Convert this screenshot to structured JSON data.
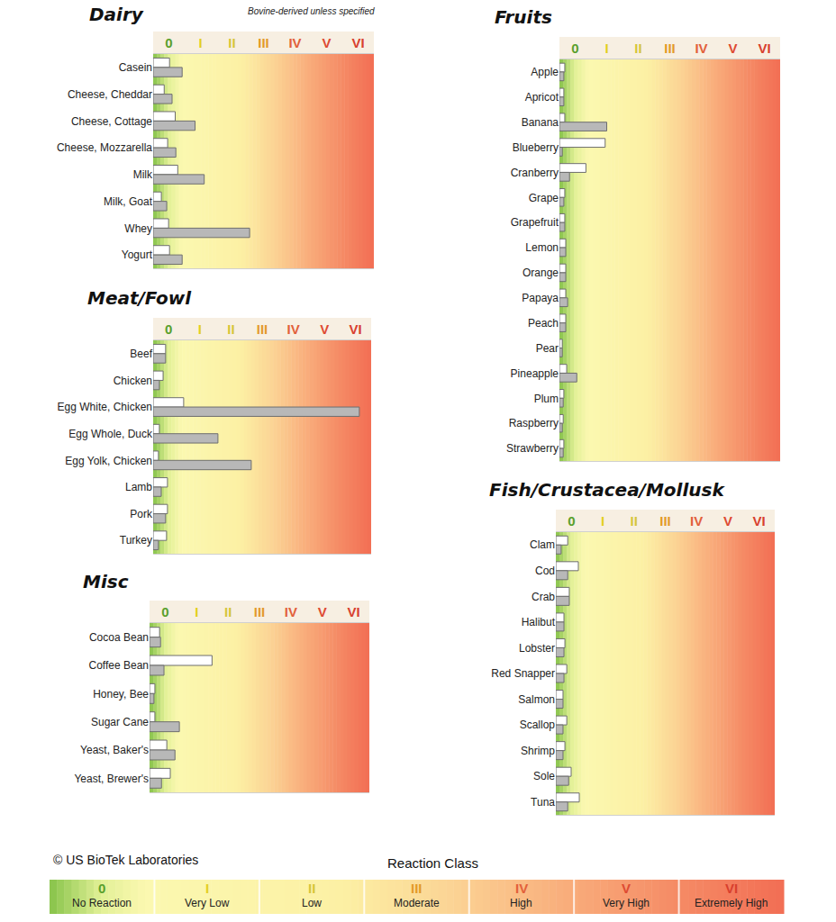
{
  "chart_data": [
    {
      "type": "bar",
      "title": "Dairy",
      "subtitle": "Bovine-derived unless specified",
      "orientation": "horizontal",
      "grid": false,
      "categories": [
        "Casein",
        "Cheese, Cheddar",
        "Cheese, Cottage",
        "Cheese, Mozzarella",
        "Milk",
        "Milk, Goat",
        "Whey",
        "Yogurt"
      ],
      "series": [
        {
          "color": "#ffffff",
          "values": [
            0.52,
            0.35,
            0.7,
            0.46,
            0.78,
            0.26,
            0.49,
            0.52
          ]
        },
        {
          "color": "#b8b8b8",
          "values": [
            0.92,
            0.6,
            1.33,
            0.72,
            1.62,
            0.43,
            3.06,
            0.92
          ]
        }
      ],
      "xlim": [
        0,
        7
      ],
      "xticks": [
        {
          "value": 0.5,
          "label": "0"
        },
        {
          "value": 1.5,
          "label": "I"
        },
        {
          "value": 2.5,
          "label": "II"
        },
        {
          "value": 3.5,
          "label": "III"
        },
        {
          "value": 4.5,
          "label": "IV"
        },
        {
          "value": 5.5,
          "label": "V"
        },
        {
          "value": 6.5,
          "label": "VI"
        }
      ]
    },
    {
      "type": "bar",
      "title": "Meat/Fowl",
      "orientation": "horizontal",
      "grid": false,
      "categories": [
        "Beef",
        "Chicken",
        "Egg White, Chicken",
        "Egg Whole, Duck",
        "Egg Yolk, Chicken",
        "Lamb",
        "Pork",
        "Turkey"
      ],
      "series": [
        {
          "color": "#ffffff",
          "values": [
            0.4,
            0.32,
            0.98,
            0.2,
            0.17,
            0.46,
            0.46,
            0.43
          ]
        },
        {
          "color": "#b8b8b8",
          "values": [
            0.4,
            0.2,
            6.62,
            2.08,
            3.15,
            0.26,
            0.4,
            0.17
          ]
        }
      ],
      "xlim": [
        0,
        7
      ],
      "xticks": [
        {
          "value": 0.5,
          "label": "0"
        },
        {
          "value": 1.5,
          "label": "I"
        },
        {
          "value": 2.5,
          "label": "II"
        },
        {
          "value": 3.5,
          "label": "III"
        },
        {
          "value": 4.5,
          "label": "IV"
        },
        {
          "value": 5.5,
          "label": "V"
        },
        {
          "value": 6.5,
          "label": "VI"
        }
      ]
    },
    {
      "type": "bar",
      "title": "Misc",
      "orientation": "horizontal",
      "grid": false,
      "categories": [
        "Cocoa Bean",
        "Coffee Bean",
        "Honey, Bee",
        "Sugar Cane",
        "Yeast, Baker's",
        "Yeast, Brewer's"
      ],
      "series": [
        {
          "color": "#ffffff",
          "values": [
            0.32,
            1.99,
            0.17,
            0.17,
            0.55,
            0.66
          ]
        },
        {
          "color": "#b8b8b8",
          "values": [
            0.35,
            0.46,
            0.14,
            0.95,
            0.81,
            0.38
          ]
        }
      ],
      "xlim": [
        0,
        7
      ],
      "xticks": [
        {
          "value": 0.5,
          "label": "0"
        },
        {
          "value": 1.5,
          "label": "I"
        },
        {
          "value": 2.5,
          "label": "II"
        },
        {
          "value": 3.5,
          "label": "III"
        },
        {
          "value": 4.5,
          "label": "IV"
        },
        {
          "value": 5.5,
          "label": "V"
        },
        {
          "value": 6.5,
          "label": "VI"
        }
      ]
    },
    {
      "type": "bar",
      "title": "Fruits",
      "orientation": "horizontal",
      "grid": false,
      "categories": [
        "Apple",
        "Apricot",
        "Banana",
        "Blueberry",
        "Cranberry",
        "Grape",
        "Grapefruit",
        "Lemon",
        "Orange",
        "Papaya",
        "Peach",
        "Pear",
        "Pineapple",
        "Plum",
        "Raspberry",
        "Strawberry"
      ],
      "series": [
        {
          "color": "#ffffff",
          "values": [
            0.17,
            0.14,
            0.17,
            1.45,
            0.84,
            0.17,
            0.17,
            0.2,
            0.2,
            0.2,
            0.2,
            0.09,
            0.23,
            0.14,
            0.12,
            0.14
          ]
        },
        {
          "color": "#b8b8b8",
          "values": [
            0.14,
            0.14,
            1.5,
            0.09,
            0.32,
            0.14,
            0.17,
            0.2,
            0.2,
            0.26,
            0.2,
            0.09,
            0.55,
            0.12,
            0.09,
            0.12
          ]
        }
      ],
      "xlim": [
        0,
        7
      ],
      "xticks": [
        {
          "value": 0.5,
          "label": "0"
        },
        {
          "value": 1.5,
          "label": "I"
        },
        {
          "value": 2.5,
          "label": "II"
        },
        {
          "value": 3.5,
          "label": "III"
        },
        {
          "value": 4.5,
          "label": "IV"
        },
        {
          "value": 5.5,
          "label": "V"
        },
        {
          "value": 6.5,
          "label": "VI"
        }
      ]
    },
    {
      "type": "bar",
      "title": "Fish/Crustacea/Mollusk",
      "orientation": "horizontal",
      "grid": false,
      "categories": [
        "Clam",
        "Cod",
        "Crab",
        "Halibut",
        "Lobster",
        "Red Snapper",
        "Salmon",
        "Scallop",
        "Shrimp",
        "Sole",
        "Tuna"
      ],
      "series": [
        {
          "color": "#ffffff",
          "values": [
            0.38,
            0.72,
            0.43,
            0.26,
            0.29,
            0.35,
            0.23,
            0.35,
            0.29,
            0.49,
            0.75
          ]
        },
        {
          "color": "#b8b8b8",
          "values": [
            0.17,
            0.38,
            0.43,
            0.26,
            0.26,
            0.26,
            0.23,
            0.23,
            0.23,
            0.41,
            0.38
          ]
        }
      ],
      "xlim": [
        0,
        7
      ],
      "xticks": [
        {
          "value": 0.5,
          "label": "0"
        },
        {
          "value": 1.5,
          "label": "I"
        },
        {
          "value": 2.5,
          "label": "II"
        },
        {
          "value": 3.5,
          "label": "III"
        },
        {
          "value": 4.5,
          "label": "IV"
        },
        {
          "value": 5.5,
          "label": "V"
        },
        {
          "value": 6.5,
          "label": "VI"
        }
      ]
    }
  ],
  "footer": {
    "copyright": "© US BioTek Laboratories",
    "title": "Reaction Class",
    "classes": [
      {
        "label": "0",
        "name": "No Reaction"
      },
      {
        "label": "I",
        "name": "Very Low"
      },
      {
        "label": "II",
        "name": "Low"
      },
      {
        "label": "III",
        "name": "Moderate"
      },
      {
        "label": "IV",
        "name": "High"
      },
      {
        "label": "V",
        "name": "Very High"
      },
      {
        "label": "VI",
        "name": "Extremely High"
      }
    ]
  }
}
